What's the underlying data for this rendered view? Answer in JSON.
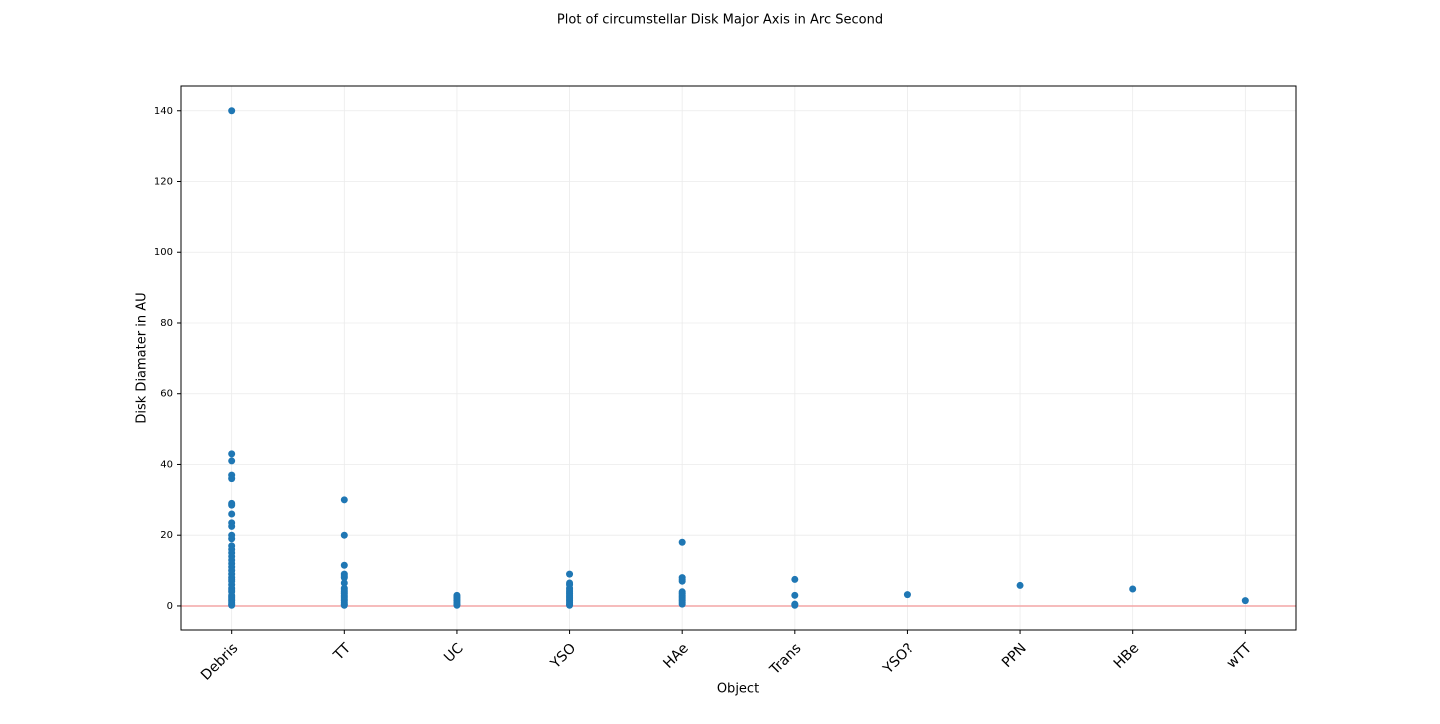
{
  "chart_data": {
    "type": "scatter",
    "title": "Plot of circumstellar Disk Major Axis in Arc Second",
    "x_label": "Object",
    "y_label": "Disk Diamater in AU",
    "categories": [
      "Debris",
      "TT",
      "UC",
      "YSO",
      "HAe",
      "Trans",
      "YSO?",
      "PPN",
      "HBe",
      "wTT"
    ],
    "series": [
      {
        "color": "#1f77b4",
        "x": [
          "Debris",
          "Debris",
          "Debris",
          "Debris",
          "Debris",
          "Debris",
          "Debris",
          "Debris",
          "Debris",
          "Debris",
          "Debris",
          "Debris",
          "Debris",
          "Debris",
          "Debris",
          "Debris",
          "Debris",
          "Debris",
          "Debris",
          "Debris",
          "Debris",
          "Debris",
          "Debris",
          "Debris",
          "Debris",
          "Debris",
          "Debris",
          "Debris",
          "Debris",
          "Debris",
          "Debris",
          "Debris",
          "Debris",
          "Debris",
          "Debris",
          "TT",
          "TT",
          "TT",
          "TT",
          "TT",
          "TT",
          "TT",
          "TT",
          "TT",
          "TT",
          "TT",
          "TT",
          "TT",
          "TT",
          "TT",
          "TT",
          "TT",
          "TT",
          "UC",
          "UC",
          "UC",
          "UC",
          "UC",
          "UC",
          "UC",
          "YSO",
          "YSO",
          "YSO",
          "YSO",
          "YSO",
          "YSO",
          "YSO",
          "YSO",
          "YSO",
          "YSO",
          "YSO",
          "YSO",
          "YSO",
          "YSO",
          "HAe",
          "HAe",
          "HAe",
          "HAe",
          "HAe",
          "HAe",
          "HAe",
          "HAe",
          "HAe",
          "HAe",
          "HAe",
          "HAe",
          "Trans",
          "Trans",
          "Trans",
          "Trans",
          "YSO?",
          "PPN",
          "HBe",
          "wTT"
        ],
        "values": [
          140,
          43,
          41,
          37,
          36,
          29,
          28.5,
          26,
          23.5,
          22.5,
          20,
          19,
          17,
          16,
          15,
          14,
          13,
          12,
          11,
          10,
          9,
          8,
          7.5,
          7,
          6,
          5,
          4.5,
          4,
          3,
          2.5,
          2,
          1.5,
          1,
          0.5,
          0.2,
          30,
          20,
          11.5,
          9,
          8.5,
          8,
          6.5,
          5,
          4.5,
          4,
          3.5,
          3,
          2.5,
          2,
          1.5,
          1,
          0.5,
          0.2,
          3,
          2.5,
          2,
          1.5,
          1,
          0.5,
          0.2,
          9,
          6.5,
          6,
          5,
          4.5,
          4,
          3.5,
          3,
          2.5,
          2,
          1.5,
          1,
          0.5,
          0.2,
          18,
          8,
          7.5,
          7,
          4,
          3.5,
          3,
          2.5,
          2,
          1.5,
          1,
          0.5,
          7.5,
          3,
          0.5,
          0.2,
          3.2,
          5.8,
          4.8,
          1.5
        ]
      }
    ],
    "ylim": [
      -6.8,
      147
    ],
    "yticks": [
      0,
      20,
      40,
      60,
      80,
      100,
      120,
      140
    ],
    "xlim": [
      -0.45,
      9.45
    ],
    "hline": 0,
    "hline_color": "#f4a6a6",
    "grid": true
  }
}
